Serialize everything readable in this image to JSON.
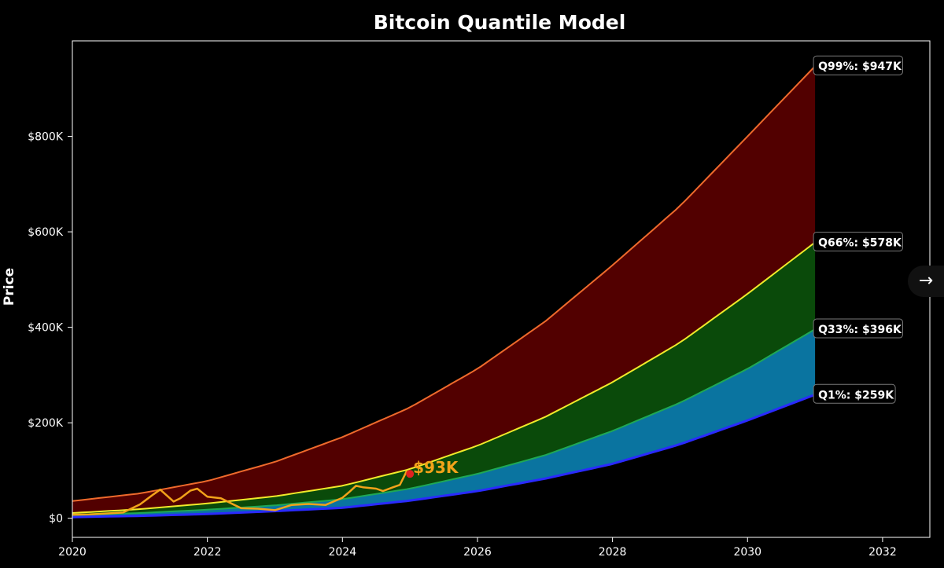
{
  "chart_data": {
    "type": "area",
    "title": "Bitcoin Quantile Model",
    "ylabel": "Price",
    "xlabel": "",
    "xlim": [
      2020.0,
      2032.7
    ],
    "ylim": [
      -40000,
      1000000
    ],
    "x_ticks": [
      2020,
      2022,
      2024,
      2026,
      2028,
      2030,
      2032
    ],
    "y_ticks": [
      {
        "value": 0,
        "label": "$0"
      },
      {
        "value": 200000,
        "label": "$200K"
      },
      {
        "value": 400000,
        "label": "$400K"
      },
      {
        "value": 600000,
        "label": "$600K"
      },
      {
        "value": 800000,
        "label": "$800K"
      }
    ],
    "grid": false,
    "series": [
      {
        "name": "Q99%",
        "color": "#ee6a2c",
        "x": [
          2020.0,
          2021.0,
          2022.0,
          2023.0,
          2024.0,
          2025.0,
          2026.0,
          2027.0,
          2028.0,
          2029.0,
          2030.0,
          2031.0
        ],
        "values": [
          36000,
          52000,
          78000,
          118000,
          170000,
          232000,
          313000,
          412000,
          530000,
          654000,
          800000,
          947000
        ]
      },
      {
        "name": "Q66%",
        "color": "#f0ea2a",
        "x": [
          2020.0,
          2021.0,
          2022.0,
          2023.0,
          2024.0,
          2025.0,
          2026.0,
          2027.0,
          2028.0,
          2029.0,
          2030.0,
          2031.0
        ],
        "values": [
          11000,
          19000,
          31000,
          46000,
          68000,
          103000,
          152000,
          212000,
          285000,
          368000,
          470000,
          578000
        ]
      },
      {
        "name": "Q33%",
        "color": "#1fa855",
        "x": [
          2020.0,
          2021.0,
          2022.0,
          2023.0,
          2024.0,
          2025.0,
          2026.0,
          2027.0,
          2028.0,
          2029.0,
          2030.0,
          2031.0
        ],
        "values": [
          6500,
          11000,
          18000,
          27000,
          40000,
          62000,
          93000,
          132000,
          183000,
          242000,
          313000,
          396000
        ]
      },
      {
        "name": "Q1%",
        "color": "#2a2aff",
        "x": [
          2020.0,
          2021.0,
          2022.0,
          2023.0,
          2024.0,
          2025.0,
          2026.0,
          2027.0,
          2028.0,
          2029.0,
          2030.0,
          2031.0
        ],
        "values": [
          2500,
          5000,
          9000,
          15000,
          22000,
          37000,
          57000,
          83000,
          114000,
          155000,
          205000,
          259000
        ]
      }
    ],
    "bands": [
      {
        "between": [
          "Q66%",
          "Q99%"
        ],
        "color": "#520000"
      },
      {
        "between": [
          "Q33%",
          "Q66%"
        ],
        "color": "#0a4a0a"
      },
      {
        "between": [
          "Q1%",
          "Q33%"
        ],
        "color": "#0a74a0"
      }
    ],
    "band_end_x": 2031.0,
    "end_labels": [
      {
        "text": "Q99%: $947K",
        "value": 947000
      },
      {
        "text": "Q66%: $578K",
        "value": 578000
      },
      {
        "text": "Q33%: $396K",
        "value": 396000
      },
      {
        "text": "Q1%: $259K",
        "value": 259000
      }
    ],
    "price": {
      "name": "",
      "color": "#f2a31a",
      "x": [
        2020.0,
        2020.25,
        2020.5,
        2020.75,
        2021.0,
        2021.2,
        2021.3,
        2021.5,
        2021.6,
        2021.75,
        2021.85,
        2022.0,
        2022.2,
        2022.4,
        2022.5,
        2022.75,
        2023.0,
        2023.25,
        2023.5,
        2023.75,
        2024.0,
        2024.1,
        2024.2,
        2024.3,
        2024.5,
        2024.6,
        2024.75,
        2024.85,
        2024.95,
        2025.0
      ],
      "values": [
        7500,
        8000,
        10000,
        12000,
        29000,
        50000,
        60000,
        35000,
        42000,
        58000,
        62000,
        45000,
        42000,
        28000,
        21000,
        20000,
        17000,
        28000,
        30000,
        28000,
        43000,
        55000,
        68000,
        65000,
        62000,
        57000,
        65000,
        70000,
        98000,
        93000
      ]
    },
    "current_price": {
      "x": 2025.0,
      "value": 93000,
      "label": "$93K",
      "color": "#f2a31a",
      "marker_color": "#e02020"
    },
    "background": "#000000"
  },
  "ui": {
    "nav_arrow": "→",
    "nav_icon": "arrow-right-icon"
  }
}
